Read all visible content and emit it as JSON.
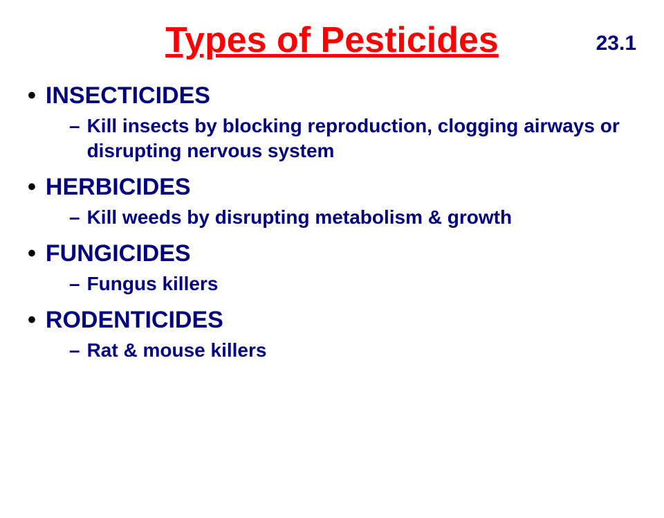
{
  "colors": {
    "title": "#ff0000",
    "heading": "#000080",
    "sub": "#000080",
    "bullet": "#000000",
    "page_number": "#000080",
    "background": "#ffffff"
  },
  "page_number": "23.1",
  "title": "Types of Pesticides",
  "items": [
    {
      "heading": "INSECTICIDES",
      "sub": "Kill insects by blocking reproduction, clogging airways or disrupting nervous system"
    },
    {
      "heading": "HERBICIDES",
      "sub": "Kill weeds by disrupting metabolism & growth"
    },
    {
      "heading": "FUNGICIDES",
      "sub": "Fungus killers"
    },
    {
      "heading": "RODENTICIDES",
      "sub": "Rat & mouse killers"
    }
  ]
}
